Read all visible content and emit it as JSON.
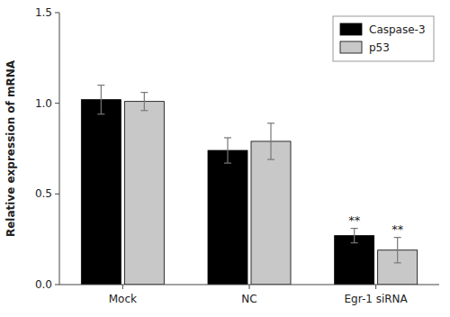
{
  "chart_data": {
    "type": "bar",
    "ylabel": "Relative expression of mRNA",
    "categories": [
      "Mock",
      "NC",
      "Egr-1 siRNA"
    ],
    "series": [
      {
        "name": "Caspase-3",
        "color": "#000000",
        "values": [
          1.02,
          0.74,
          0.27
        ],
        "errors": [
          0.08,
          0.07,
          0.04
        ]
      },
      {
        "name": "p53",
        "color": "#c8c8c8",
        "values": [
          1.01,
          0.79,
          0.19
        ],
        "errors": [
          0.05,
          0.1,
          0.07
        ]
      }
    ],
    "ylim": [
      0,
      1.5
    ],
    "yticks": [
      {
        "value": 0,
        "label": "0.0"
      },
      0.5,
      {
        "value": 1,
        "label": "1.0"
      },
      1.5
    ],
    "annotations": [
      {
        "text": "**",
        "category": "Egr-1 siRNA",
        "series": "Caspase-3"
      },
      {
        "text": "**",
        "category": "Egr-1 siRNA",
        "series": "p53"
      }
    ],
    "legend": "upper right",
    "grid": false
  }
}
